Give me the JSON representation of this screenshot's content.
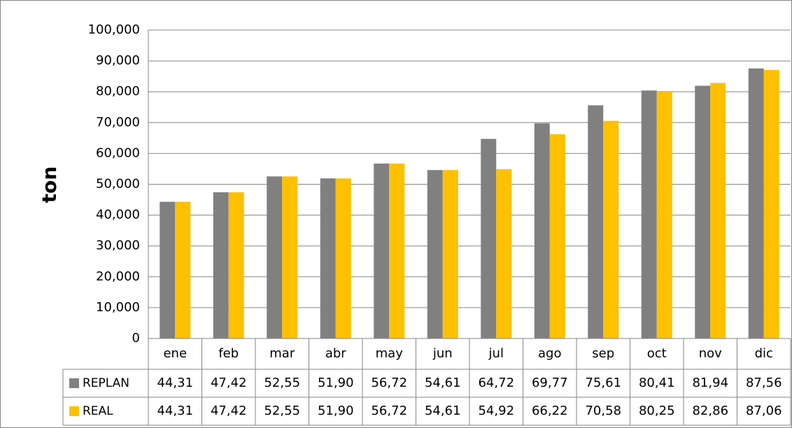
{
  "chart_data": {
    "type": "bar",
    "y_label": "ton",
    "categories": [
      "ene",
      "feb",
      "mar",
      "abr",
      "may",
      "jun",
      "jul",
      "ago",
      "sep",
      "oct",
      "nov",
      "dic"
    ],
    "series": [
      {
        "name": "REPLAN",
        "color": "#808080",
        "values": [
          44.31,
          47.42,
          52.55,
          51.9,
          56.72,
          54.61,
          64.72,
          69.77,
          75.61,
          80.41,
          81.94,
          87.56
        ],
        "value_labels": [
          "44,31",
          "47,42",
          "52,55",
          "51,90",
          "56,72",
          "54,61",
          "64,72",
          "69,77",
          "75,61",
          "80,41",
          "81,94",
          "87,56"
        ]
      },
      {
        "name": "REAL",
        "color": "#FFC000",
        "values": [
          44.31,
          47.42,
          52.55,
          51.9,
          56.72,
          54.61,
          54.92,
          66.22,
          70.58,
          80.25,
          82.86,
          87.06
        ],
        "value_labels": [
          "44,31",
          "47,42",
          "52,55",
          "51,90",
          "56,72",
          "54,61",
          "54,92",
          "66,22",
          "70,58",
          "80,25",
          "82,86",
          "87,06"
        ]
      }
    ],
    "ylim": [
      0,
      100
    ],
    "yticks": [
      0,
      {
        "value": 10,
        "label": "10,000"
      },
      {
        "value": 20,
        "label": "20,000"
      },
      {
        "value": 30,
        "label": "30,000"
      },
      {
        "value": 40,
        "label": "40,000"
      },
      {
        "value": 50,
        "label": "50,000"
      },
      {
        "value": 60,
        "label": "60,000"
      },
      {
        "value": 70,
        "label": "70,000"
      },
      {
        "value": 80,
        "label": "80,000"
      },
      {
        "value": 90,
        "label": "90,000"
      },
      {
        "value": 100,
        "label": "100,000"
      }
    ],
    "grid": true
  }
}
